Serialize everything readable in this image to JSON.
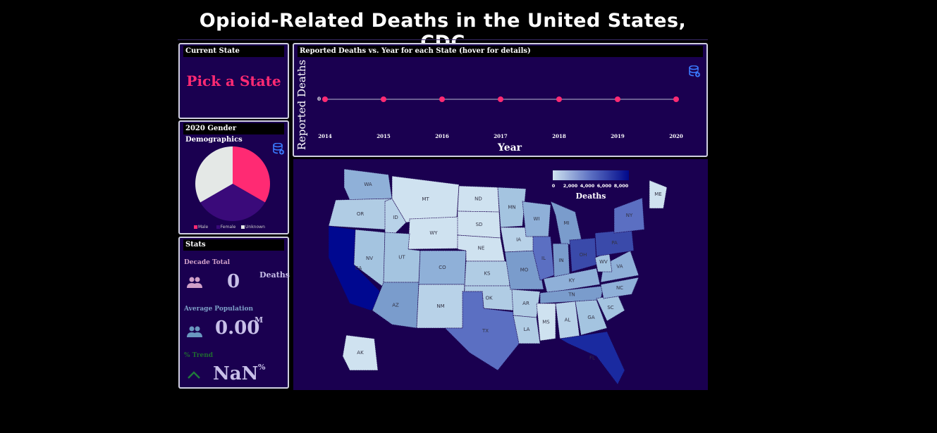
{
  "title": "Opioid-Related Deaths in the United States, CDC",
  "current_state": {
    "header": "Current State",
    "placeholder": "Pick a State"
  },
  "gender": {
    "header": "2020 Gender Demographics",
    "slices": [
      {
        "label": "Male",
        "value": 33.33,
        "color": "#ff2a73"
      },
      {
        "label": "Female",
        "value": 33.33,
        "color": "#3a0a7a"
      },
      {
        "label": "Unknown",
        "value": 33.34,
        "color": "#e4e8e6"
      }
    ]
  },
  "stats": {
    "header": "Stats",
    "decade_total_label": "Decade Total",
    "decade_total_value": "0",
    "decade_total_unit": "Deaths",
    "avg_pop_label": "Average Population",
    "avg_pop_value": "0.00",
    "avg_pop_unit": "M",
    "trend_label": "% Trend",
    "trend_value": "NaN",
    "trend_unit": "%"
  },
  "chart_data": {
    "type": "line",
    "title": "Reported Deaths vs. Year for each State (hover for details)",
    "xlabel": "Year",
    "ylabel": "Reported Deaths",
    "x": [
      "2014",
      "2015",
      "2016",
      "2017",
      "2018",
      "2019",
      "2020"
    ],
    "series": [
      {
        "name": "Deaths",
        "values": [
          0,
          0,
          0,
          0,
          0,
          0,
          0
        ],
        "color": "#ff2a73"
      }
    ],
    "ytick": "0"
  },
  "map": {
    "colorbar_label": "Deaths",
    "colorbar_ticks": [
      "0",
      "2,000",
      "4,000",
      "6,000",
      "8,000"
    ],
    "states": [
      "WA",
      "OR",
      "CA",
      "NV",
      "ID",
      "MT",
      "WY",
      "UT",
      "AZ",
      "CO",
      "NM",
      "ND",
      "SD",
      "NE",
      "KS",
      "OK",
      "TX",
      "MN",
      "IA",
      "MO",
      "AR",
      "LA",
      "WI",
      "IL",
      "MI",
      "IN",
      "OH",
      "KY",
      "TN",
      "MS",
      "AL",
      "GA",
      "FL",
      "SC",
      "NC",
      "VA",
      "WV",
      "PA",
      "NY",
      "ME",
      "AK"
    ]
  }
}
